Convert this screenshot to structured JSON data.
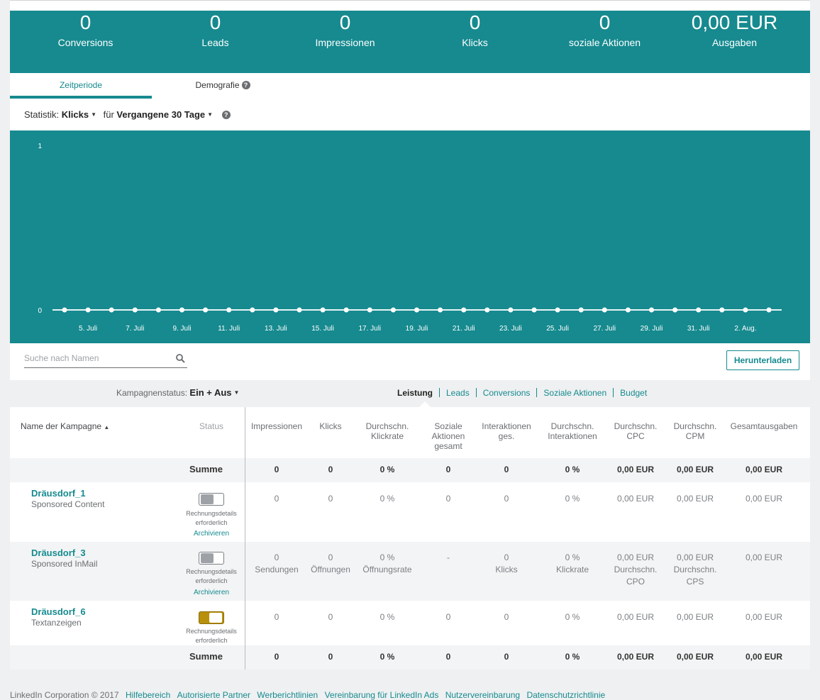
{
  "kpis": [
    {
      "value": "0",
      "label": "Conversions"
    },
    {
      "value": "0",
      "label": "Leads"
    },
    {
      "value": "0",
      "label": "Impressionen"
    },
    {
      "value": "0",
      "label": "Klicks"
    },
    {
      "value": "0",
      "label": "soziale Aktionen"
    },
    {
      "value": "0,00 EUR",
      "label": "Ausgaben"
    }
  ],
  "tabs": {
    "active": "Zeitperiode",
    "inactive": "Demografie"
  },
  "statistik": {
    "label": "Statistik:",
    "metric": "Klicks",
    "for_label": "für",
    "period": "Vergangene 30 Tage"
  },
  "chart_data": {
    "type": "line",
    "title": "",
    "xlabel": "",
    "ylabel": "",
    "y_ticks": [
      "1",
      "0"
    ],
    "ylim": [
      0,
      1
    ],
    "x": [
      "4. Juli",
      "5. Juli",
      "6. Juli",
      "7. Juli",
      "8. Juli",
      "9. Juli",
      "10. Juli",
      "11. Juli",
      "12. Juli",
      "13. Juli",
      "14. Juli",
      "15. Juli",
      "16. Juli",
      "17. Juli",
      "18. Juli",
      "19. Juli",
      "20. Juli",
      "21. Juli",
      "22. Juli",
      "23. Juli",
      "24. Juli",
      "25. Juli",
      "26. Juli",
      "27. Juli",
      "28. Juli",
      "29. Juli",
      "30. Juli",
      "31. Juli",
      "1. Aug.",
      "2. Aug.",
      "3. Aug."
    ],
    "x_tick_labels": [
      "5. Juli",
      "7. Juli",
      "9. Juli",
      "11. Juli",
      "13. Juli",
      "15. Juli",
      "17. Juli",
      "19. Juli",
      "21. Juli",
      "23. Juli",
      "25. Juli",
      "27. Juli",
      "29. Juli",
      "31. Juli",
      "2. Aug."
    ],
    "values": [
      0,
      0,
      0,
      0,
      0,
      0,
      0,
      0,
      0,
      0,
      0,
      0,
      0,
      0,
      0,
      0,
      0,
      0,
      0,
      0,
      0,
      0,
      0,
      0,
      0,
      0,
      0,
      0,
      0,
      0,
      0
    ],
    "grid": false,
    "colors": {
      "background": "#168a8f",
      "line": "#e6f4f5",
      "marker": "#ffffff",
      "text": "#ffffff"
    }
  },
  "search": {
    "placeholder": "Suche nach Namen"
  },
  "download_label": "Herunterladen",
  "kampagnenstatus": {
    "label": "Kampagnenstatus:",
    "value": "Ein + Aus"
  },
  "views": [
    "Leistung",
    "Leads",
    "Conversions",
    "Soziale Aktionen",
    "Budget"
  ],
  "columns": {
    "name": "Name der Kampagne",
    "status": "Status",
    "impressionen": "Impressionen",
    "klicks": "Klicks",
    "klickrate": "Durchschn. Klickrate",
    "soziale": "Soziale Aktionen gesamt",
    "interaktionen": "Interaktionen ges.",
    "d_interaktionen": "Durchschn. Interaktionen",
    "cpc": "Durchschn. CPC",
    "cpm": "Durchschn. CPM",
    "gesamt": "Gesamtausgaben"
  },
  "summe": {
    "label": "Summe",
    "values": [
      "0",
      "0",
      "0 %",
      "0",
      "0",
      "0 %",
      "0,00 EUR",
      "0,00 EUR",
      "0,00 EUR"
    ]
  },
  "campaigns": [
    {
      "name": "Dräusdorf_1",
      "type": "Sponsored Content",
      "status_note": "Rechnungsdetails erforderlich",
      "archive": "Archivieren",
      "toggle_on": false,
      "values": [
        "0",
        "0",
        "0 %",
        "0",
        "0",
        "0 %",
        "0,00 EUR",
        "0,00 EUR",
        "0,00 EUR"
      ]
    },
    {
      "name": "Dräusdorf_3",
      "type": "Sponsored InMail",
      "status_note": "Rechnungsdetails erforderlich",
      "archive": "Archivieren",
      "toggle_on": false,
      "values": [
        "0",
        "0",
        "0 %",
        "-",
        "0",
        "0 %",
        "0,00 EUR",
        "0,00 EUR",
        "0,00 EUR"
      ],
      "sublabels": [
        "Sendungen",
        "Öffnungen",
        "Öffnungsrate",
        "",
        "Klicks",
        "Klickrate",
        "Durchschn. CPO",
        "Durchschn. CPS",
        ""
      ]
    },
    {
      "name": "Dräusdorf_6",
      "type": "Textanzeigen",
      "status_note": "Rechnungsdetails erforderlich",
      "toggle_on": true,
      "values": [
        "0",
        "0",
        "0 %",
        "0",
        "0",
        "0 %",
        "0,00 EUR",
        "0,00 EUR",
        "0,00 EUR"
      ]
    }
  ],
  "footer": {
    "copyright": "LinkedIn Corporation © 2017",
    "links": [
      "Hilfebereich",
      "Autorisierte Partner",
      "Werberichtlinien",
      "Vereinbarung für LinkedIn Ads",
      "Nutzervereinbarung",
      "Datenschutzrichtlinie"
    ]
  }
}
